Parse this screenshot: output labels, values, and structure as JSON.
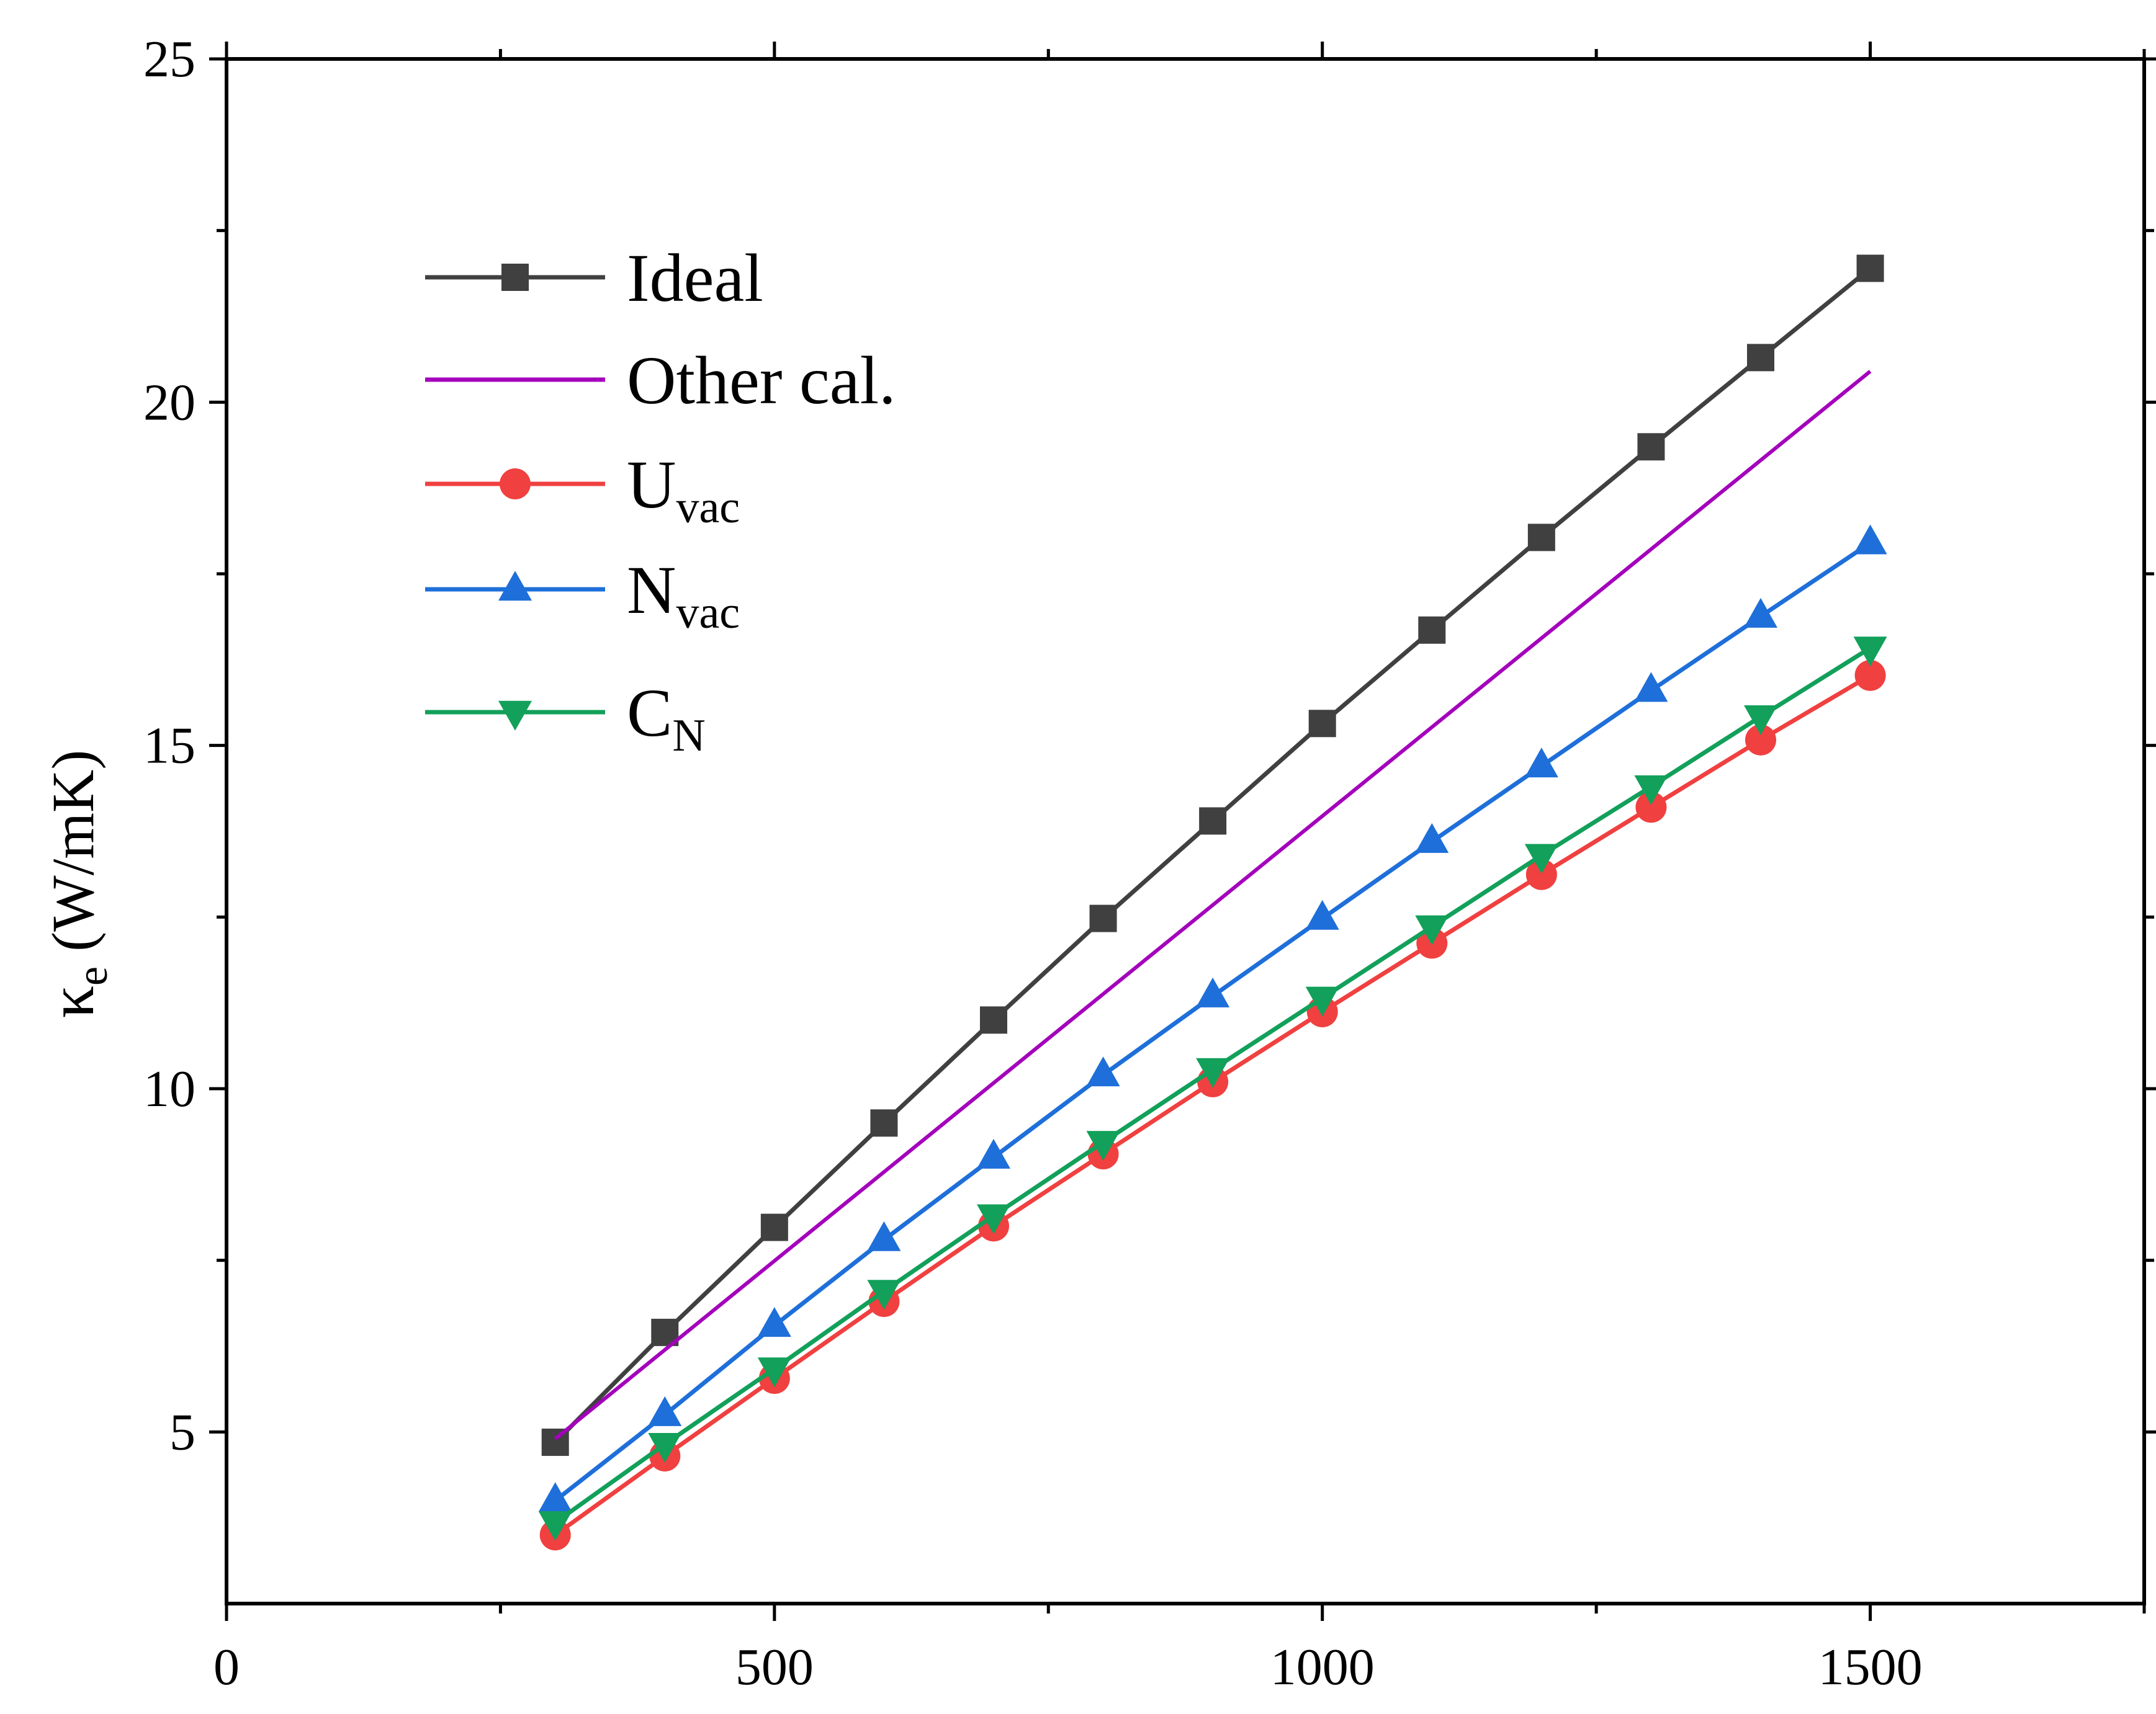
{
  "chart_data": {
    "type": "line",
    "title": "",
    "xlabel": "",
    "ylabel": "κ",
    "ylabel_sub": "e",
    "ylabel_unit": " (W/mK)",
    "xlim": [
      0,
      1750
    ],
    "ylim": [
      2.5,
      25
    ],
    "x_ticks": [
      0,
      500,
      1000,
      1500
    ],
    "x_minor_ticks": [
      250,
      750,
      1250,
      1750
    ],
    "y_ticks": [
      5,
      10,
      15,
      20,
      25
    ],
    "y_minor_ticks": [
      7.5,
      12.5,
      17.5,
      22.5
    ],
    "x": [
      300,
      400,
      500,
      600,
      700,
      800,
      900,
      1000,
      1100,
      1200,
      1300,
      1400,
      1500
    ],
    "legend_position": "top-left",
    "series": [
      {
        "name": "Ideal",
        "label_main": "Ideal",
        "label_sub": "",
        "color": "#404040",
        "marker": "square",
        "values": [
          4.85,
          6.45,
          7.98,
          9.5,
          11.0,
          12.48,
          13.9,
          15.32,
          16.68,
          18.03,
          19.35,
          20.65,
          21.95
        ]
      },
      {
        "name": "Other cal.",
        "label_main": "Other cal.",
        "label_sub": "",
        "color": "#A400BC",
        "marker": "none",
        "x": [
          300,
          1500
        ],
        "values": [
          4.9,
          20.45
        ]
      },
      {
        "name": "Uvac",
        "label_main": "U",
        "label_sub": "vac",
        "color": "#F04040",
        "marker": "circle",
        "values": [
          3.5,
          4.65,
          5.78,
          6.9,
          8.0,
          9.05,
          10.1,
          11.12,
          12.12,
          13.12,
          14.1,
          15.08,
          16.02
        ]
      },
      {
        "name": "Nvac",
        "label_main": "N",
        "label_sub": "vac",
        "color": "#1E6FD9",
        "marker": "triangle-up",
        "values": [
          4.0,
          5.25,
          6.55,
          7.8,
          9.0,
          10.2,
          11.35,
          12.48,
          13.6,
          14.7,
          15.8,
          16.88,
          17.95
        ]
      },
      {
        "name": "CN",
        "label_main": "C",
        "label_sub": "N",
        "color": "#12A05A",
        "marker": "triangle-down",
        "values": [
          3.68,
          4.82,
          5.92,
          7.05,
          8.15,
          9.22,
          10.28,
          11.32,
          12.36,
          13.4,
          14.4,
          15.42,
          16.42
        ]
      }
    ]
  }
}
